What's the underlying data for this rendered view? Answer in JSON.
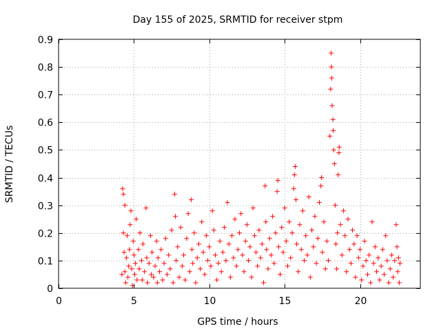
{
  "chart_data": {
    "type": "scatter",
    "title": "Day 155 of 2025, SRMTID for receiver stpm",
    "xlabel": "GPS time / hours",
    "ylabel": "SRMTID / TECUs",
    "xlim": [
      0,
      24
    ],
    "ylim": [
      0,
      0.9
    ],
    "xticks": [
      0,
      5,
      10,
      15,
      20
    ],
    "yticks": [
      0,
      0.1,
      0.2,
      0.3,
      0.4,
      0.5,
      0.6,
      0.7,
      0.8,
      0.9
    ],
    "grid": true,
    "marker": "+",
    "color": "#ff0000",
    "series": [
      {
        "name": "SRMTID",
        "points": [
          [
            4.2,
            0.05
          ],
          [
            4.25,
            0.36
          ],
          [
            4.3,
            0.34
          ],
          [
            4.3,
            0.2
          ],
          [
            4.35,
            0.13
          ],
          [
            4.4,
            0.06
          ],
          [
            4.4,
            0.3
          ],
          [
            4.45,
            0.02
          ],
          [
            4.5,
            0.11
          ],
          [
            4.55,
            0.19
          ],
          [
            4.6,
            0.04
          ],
          [
            4.65,
            0.08
          ],
          [
            4.7,
            0.14
          ],
          [
            4.75,
            0.23
          ],
          [
            4.8,
            0.28
          ],
          [
            4.85,
            0.07
          ],
          [
            4.9,
            0.01
          ],
          [
            4.95,
            0.17
          ],
          [
            5.0,
            0.12
          ],
          [
            5.05,
            0.05
          ],
          [
            5.1,
            0.09
          ],
          [
            5.15,
            0.25
          ],
          [
            5.2,
            0.03
          ],
          [
            5.3,
            0.14
          ],
          [
            5.35,
            0.07
          ],
          [
            5.4,
            0.2
          ],
          [
            5.5,
            0.1
          ],
          [
            5.55,
            0.03
          ],
          [
            5.6,
            0.16
          ],
          [
            5.7,
            0.06
          ],
          [
            5.8,
            0.29
          ],
          [
            5.85,
            0.11
          ],
          [
            5.9,
            0.02
          ],
          [
            6.0,
            0.09
          ],
          [
            6.1,
            0.19
          ],
          [
            6.15,
            0.05
          ],
          [
            6.2,
            0.13
          ],
          [
            6.3,
            0.04
          ],
          [
            6.4,
            0.08
          ],
          [
            6.5,
            0.17
          ],
          [
            6.55,
            0.02
          ],
          [
            6.6,
            0.11
          ],
          [
            6.7,
            0.06
          ],
          [
            6.8,
            0.14
          ],
          [
            6.9,
            0.03
          ],
          [
            7.0,
            0.09
          ],
          [
            7.1,
            0.18
          ],
          [
            7.2,
            0.05
          ],
          [
            7.3,
            0.12
          ],
          [
            7.4,
            0.07
          ],
          [
            7.5,
            0.21
          ],
          [
            7.6,
            0.02
          ],
          [
            7.7,
            0.34
          ],
          [
            7.75,
            0.26
          ],
          [
            7.8,
            0.1
          ],
          [
            7.9,
            0.15
          ],
          [
            8.0,
            0.04
          ],
          [
            8.1,
            0.22
          ],
          [
            8.2,
            0.08
          ],
          [
            8.3,
            0.12
          ],
          [
            8.4,
            0.03
          ],
          [
            8.5,
            0.18
          ],
          [
            8.6,
            0.27
          ],
          [
            8.7,
            0.06
          ],
          [
            8.8,
            0.32
          ],
          [
            8.85,
            0.14
          ],
          [
            8.9,
            0.09
          ],
          [
            9.0,
            0.2
          ],
          [
            9.1,
            0.02
          ],
          [
            9.2,
            0.11
          ],
          [
            9.3,
            0.16
          ],
          [
            9.4,
            0.07
          ],
          [
            9.5,
            0.24
          ],
          [
            9.6,
            0.13
          ],
          [
            9.7,
            0.05
          ],
          [
            9.8,
            0.19
          ],
          [
            9.9,
            0.1
          ],
          [
            10.0,
            0.15
          ],
          [
            10.1,
            0.08
          ],
          [
            10.2,
            0.28
          ],
          [
            10.3,
            0.21
          ],
          [
            10.4,
            0.12
          ],
          [
            10.5,
            0.03
          ],
          [
            10.6,
            0.09
          ],
          [
            10.7,
            0.17
          ],
          [
            10.8,
            0.06
          ],
          [
            10.9,
            0.13
          ],
          [
            11.0,
            0.22
          ],
          [
            11.1,
            0.1
          ],
          [
            11.2,
            0.31
          ],
          [
            11.3,
            0.16
          ],
          [
            11.4,
            0.04
          ],
          [
            11.5,
            0.19
          ],
          [
            11.6,
            0.11
          ],
          [
            11.7,
            0.25
          ],
          [
            11.8,
            0.08
          ],
          [
            11.9,
            0.14
          ],
          [
            12.0,
            0.2
          ],
          [
            12.1,
            0.27
          ],
          [
            12.2,
            0.12
          ],
          [
            12.3,
            0.06
          ],
          [
            12.4,
            0.17
          ],
          [
            12.5,
            0.23
          ],
          [
            12.6,
            0.1
          ],
          [
            12.7,
            0.15
          ],
          [
            12.8,
            0.04
          ],
          [
            12.9,
            0.29
          ],
          [
            13.0,
            0.19
          ],
          [
            13.1,
            0.13
          ],
          [
            13.2,
            0.08
          ],
          [
            13.3,
            0.21
          ],
          [
            13.4,
            0.11
          ],
          [
            13.5,
            0.16
          ],
          [
            13.6,
            0.02
          ],
          [
            13.7,
            0.37
          ],
          [
            13.75,
            0.24
          ],
          [
            13.8,
            0.14
          ],
          [
            13.9,
            0.07
          ],
          [
            14.0,
            0.18
          ],
          [
            14.1,
            0.12
          ],
          [
            14.2,
            0.26
          ],
          [
            14.3,
            0.09
          ],
          [
            14.4,
            0.2
          ],
          [
            14.5,
            0.35
          ],
          [
            14.55,
            0.39
          ],
          [
            14.6,
            0.15
          ],
          [
            14.7,
            0.05
          ],
          [
            14.8,
            0.22
          ],
          [
            14.9,
            0.13
          ],
          [
            15.0,
            0.29
          ],
          [
            15.1,
            0.17
          ],
          [
            15.2,
            0.08
          ],
          [
            15.3,
            0.24
          ],
          [
            15.4,
            0.11
          ],
          [
            15.5,
            0.2
          ],
          [
            15.6,
            0.36
          ],
          [
            15.65,
            0.41
          ],
          [
            15.7,
            0.44
          ],
          [
            15.75,
            0.32
          ],
          [
            15.8,
            0.16
          ],
          [
            15.9,
            0.06
          ],
          [
            16.0,
            0.23
          ],
          [
            16.1,
            0.14
          ],
          [
            16.2,
            0.28
          ],
          [
            16.3,
            0.1
          ],
          [
            16.4,
            0.19
          ],
          [
            16.5,
            0.12
          ],
          [
            16.6,
            0.33
          ],
          [
            16.7,
            0.04
          ],
          [
            16.8,
            0.21
          ],
          [
            16.9,
            0.15
          ],
          [
            17.0,
            0.26
          ],
          [
            17.1,
            0.09
          ],
          [
            17.2,
            0.18
          ],
          [
            17.3,
            0.31
          ],
          [
            17.4,
            0.37
          ],
          [
            17.45,
            0.4
          ],
          [
            17.5,
            0.13
          ],
          [
            17.6,
            0.24
          ],
          [
            17.7,
            0.07
          ],
          [
            17.8,
            0.17
          ],
          [
            17.9,
            0.1
          ],
          [
            18.0,
            0.55
          ],
          [
            18.05,
            0.72
          ],
          [
            18.08,
            0.85
          ],
          [
            18.1,
            0.8
          ],
          [
            18.12,
            0.76
          ],
          [
            18.15,
            0.66
          ],
          [
            18.2,
            0.61
          ],
          [
            18.22,
            0.57
          ],
          [
            18.25,
            0.5
          ],
          [
            18.3,
            0.45
          ],
          [
            18.35,
            0.3
          ],
          [
            18.4,
            0.16
          ],
          [
            18.45,
            0.07
          ],
          [
            18.5,
            0.2
          ],
          [
            18.55,
            0.41
          ],
          [
            18.6,
            0.49
          ],
          [
            18.62,
            0.51
          ],
          [
            18.7,
            0.23
          ],
          [
            18.8,
            0.12
          ],
          [
            18.9,
            0.28
          ],
          [
            19.0,
            0.19
          ],
          [
            19.1,
            0.06
          ],
          [
            19.2,
            0.25
          ],
          [
            19.3,
            0.14
          ],
          [
            19.4,
            0.09
          ],
          [
            19.5,
            0.21
          ],
          [
            19.6,
            0.16
          ],
          [
            19.7,
            0.04
          ],
          [
            19.8,
            0.19
          ],
          [
            19.9,
            0.11
          ],
          [
            20.0,
            0.14
          ],
          [
            20.1,
            0.03
          ],
          [
            20.2,
            0.08
          ],
          [
            20.3,
            0.17
          ],
          [
            20.4,
            0.1
          ],
          [
            20.5,
            0.05
          ],
          [
            20.6,
            0.12
          ],
          [
            20.7,
            0.02
          ],
          [
            20.8,
            0.24
          ],
          [
            20.9,
            0.09
          ],
          [
            21.0,
            0.15
          ],
          [
            21.1,
            0.06
          ],
          [
            21.2,
            0.11
          ],
          [
            21.3,
            0.03
          ],
          [
            21.4,
            0.08
          ],
          [
            21.5,
            0.14
          ],
          [
            21.6,
            0.05
          ],
          [
            21.7,
            0.19
          ],
          [
            21.8,
            0.1
          ],
          [
            21.9,
            0.02
          ],
          [
            22.0,
            0.07
          ],
          [
            22.1,
            0.12
          ],
          [
            22.2,
            0.04
          ],
          [
            22.3,
            0.1
          ],
          [
            22.4,
            0.23
          ],
          [
            22.45,
            0.15
          ],
          [
            22.5,
            0.06
          ],
          [
            22.55,
            0.11
          ],
          [
            22.6,
            0.02
          ],
          [
            22.65,
            0.09
          ]
        ]
      }
    ]
  }
}
